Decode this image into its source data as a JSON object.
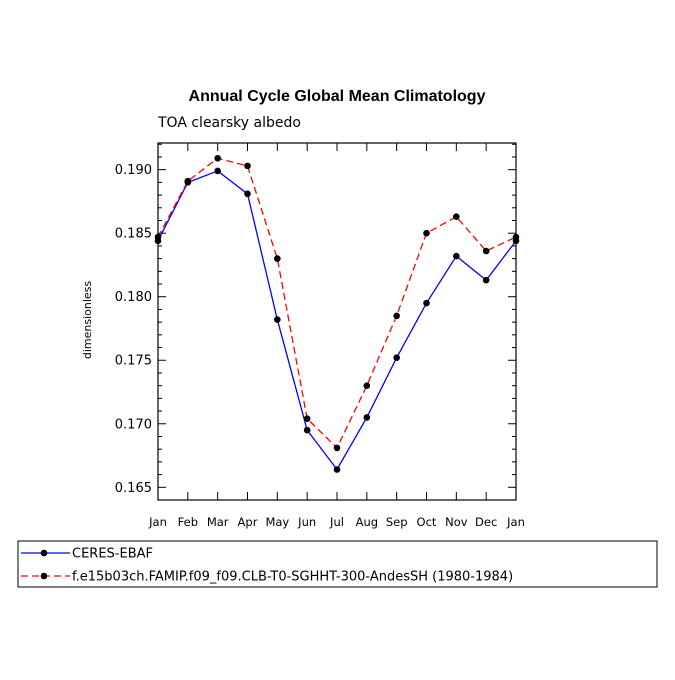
{
  "chart_data": {
    "type": "line",
    "title": "Annual Cycle Global Mean Climatology",
    "subtitle": "TOA clearsky albedo",
    "xlabel": "",
    "ylabel": "dimensionless",
    "categories": [
      "Jan",
      "Feb",
      "Mar",
      "Apr",
      "May",
      "Jun",
      "Jul",
      "Aug",
      "Sep",
      "Oct",
      "Nov",
      "Dec",
      "Jan"
    ],
    "ylim": [
      0.164,
      0.1921
    ],
    "yticks": [
      0.165,
      0.17,
      0.175,
      0.18,
      0.185,
      0.19
    ],
    "ytick_labels": [
      "0.165",
      "0.170",
      "0.175",
      "0.180",
      "0.185",
      "0.190"
    ],
    "series": [
      {
        "name": "CERES-EBAF",
        "color": "#0000ff",
        "dash": "solid",
        "values": [
          0.1844,
          0.189,
          0.1899,
          0.1881,
          0.1782,
          0.1695,
          0.1664,
          0.1705,
          0.1752,
          0.1795,
          0.1832,
          0.1813,
          0.1844
        ]
      },
      {
        "name": "f.e15b03ch.FAMIP.f09_f09.CLB-T0-SGHHT-300-AndesSH (1980-1984)",
        "color": "#ff0000",
        "dash": "dashed",
        "values": [
          0.1847,
          0.1891,
          0.1909,
          0.1903,
          0.183,
          0.1704,
          0.1681,
          0.173,
          0.1785,
          0.185,
          0.1863,
          0.1836,
          0.1847
        ]
      }
    ]
  }
}
